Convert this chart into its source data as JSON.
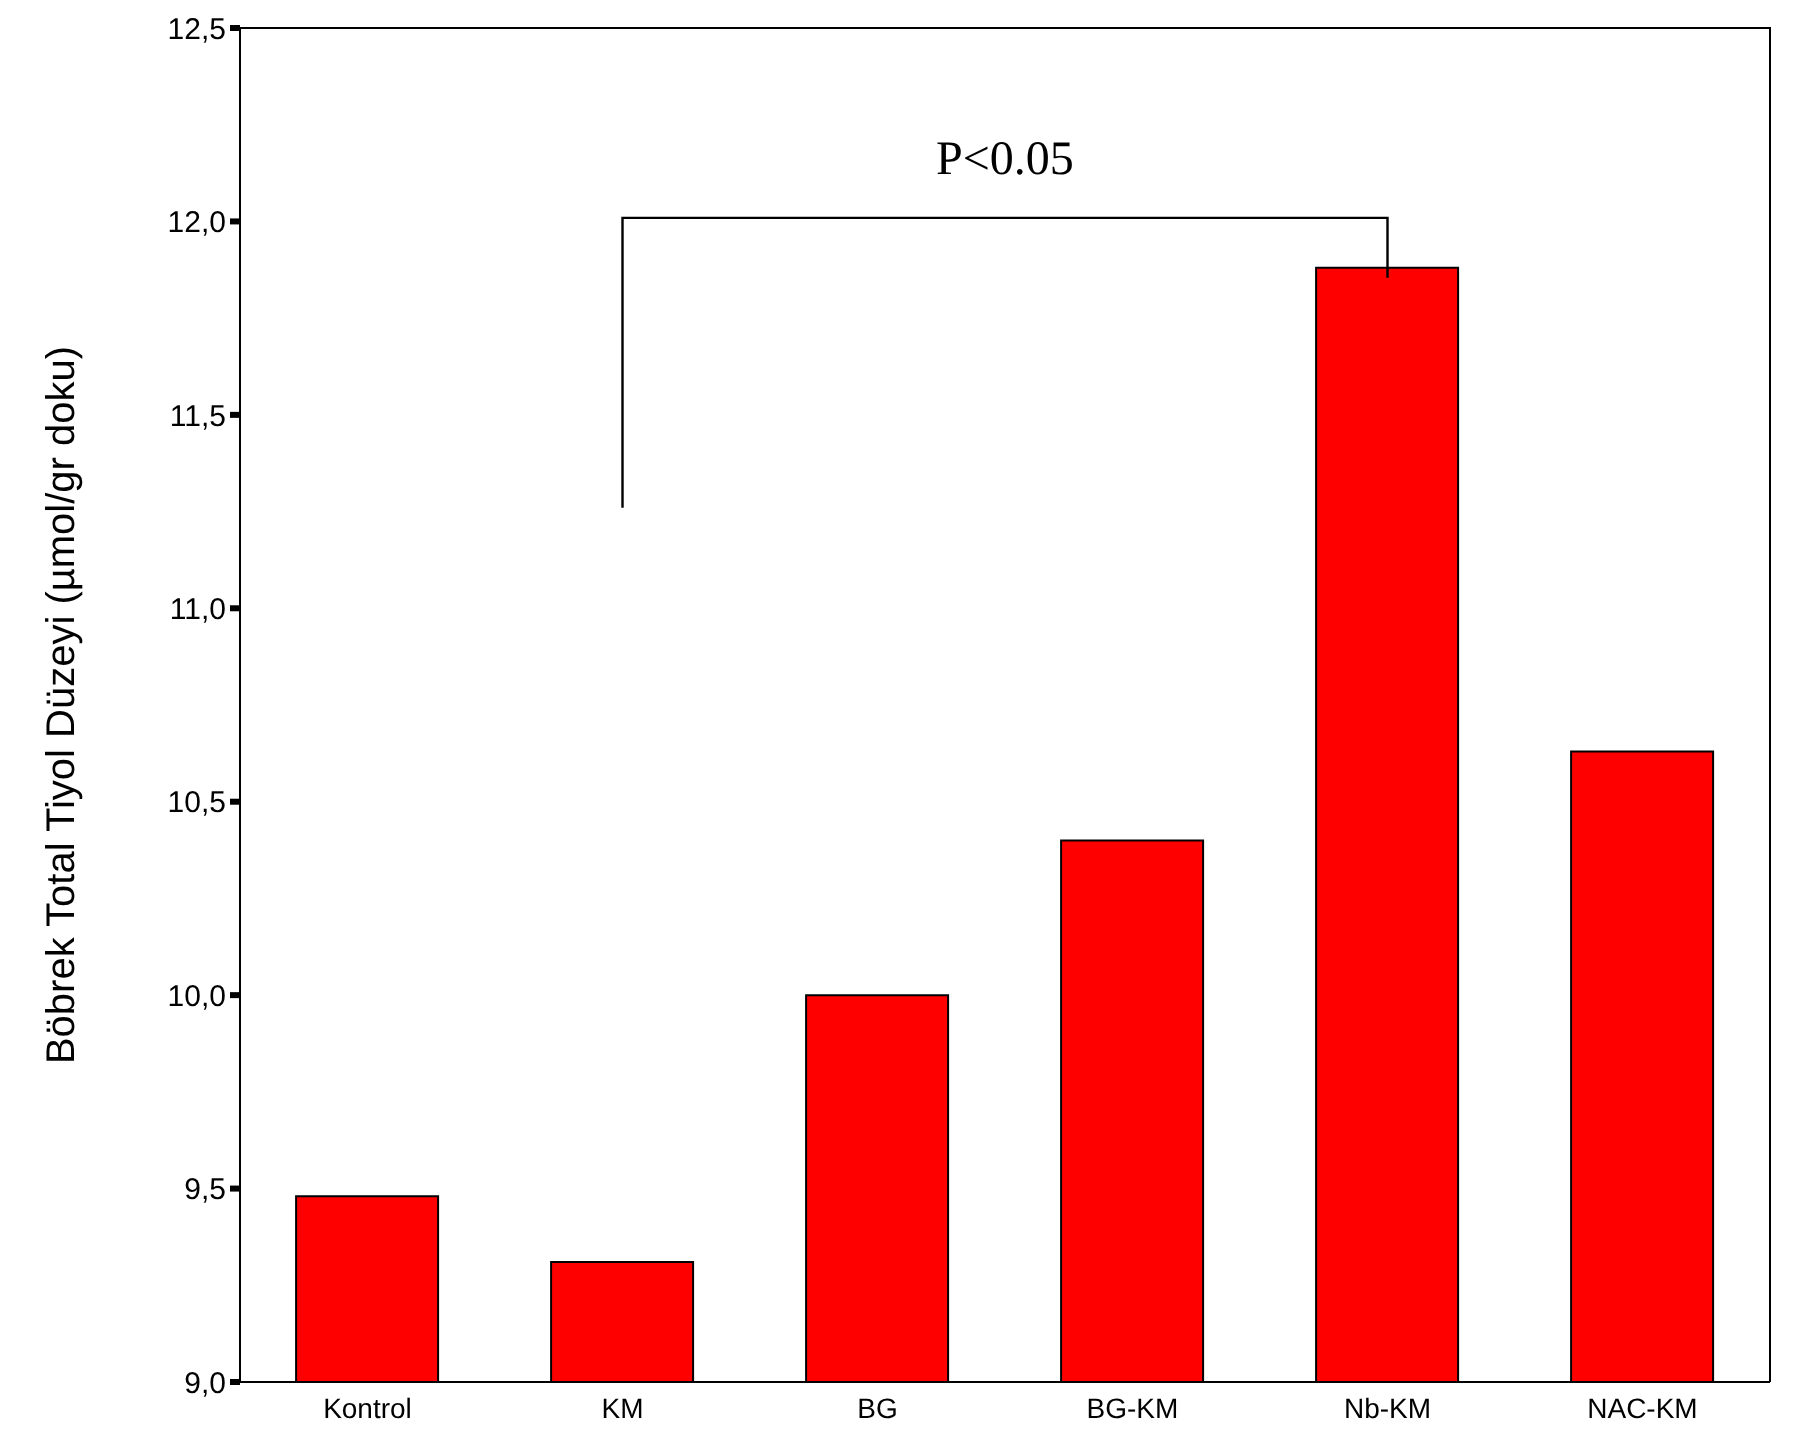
{
  "chart_data": {
    "type": "bar",
    "ylabel": "Böbrek Total Tiyol Düzeyi  (µmol/gr doku)",
    "categories": [
      "Kontrol",
      "KM",
      "BG",
      "BG-KM",
      "Nb-KM",
      "NAC-KM"
    ],
    "values": [
      9.48,
      9.31,
      10.0,
      10.4,
      11.88,
      10.63
    ],
    "color": "#ff0000",
    "ylim": [
      9.0,
      12.5
    ],
    "yticks": [
      {
        "value": 9.0,
        "label": "9,0"
      },
      {
        "value": 9.5,
        "label": "9,5"
      },
      {
        "value": 10.0,
        "label": "10,0"
      },
      {
        "value": 10.5,
        "label": "10,5"
      },
      {
        "value": 11.0,
        "label": "11,0"
      },
      {
        "value": 11.5,
        "label": "11,5"
      },
      {
        "value": 12.0,
        "label": "12,0"
      },
      {
        "value": 12.5,
        "label": "12,5"
      }
    ],
    "grid": false,
    "annotations": [
      "P<0.05"
    ]
  }
}
